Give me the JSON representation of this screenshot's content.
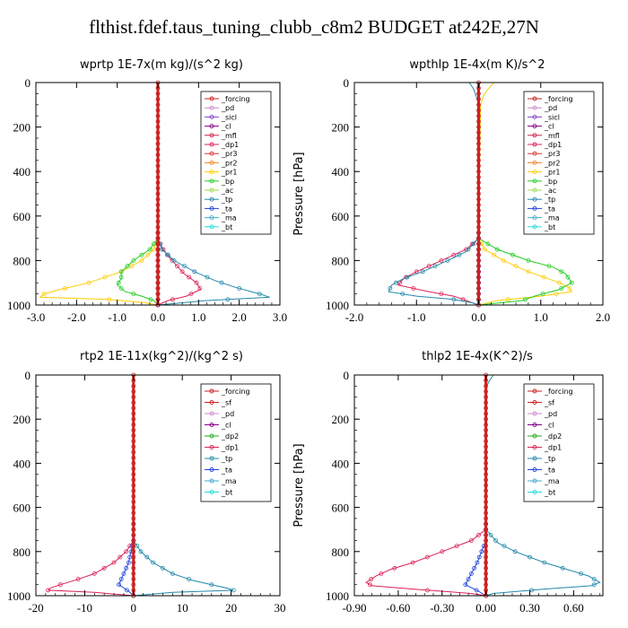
{
  "title": "flthist.fdef.taus_tuning_clubb_c8m2  BUDGET at242E,27N",
  "colors": {
    "forcing": "#cc2222",
    "sf": "#cc2222",
    "pd": "#cc88cc",
    "sicl": "#8844cc",
    "cl": "#880088",
    "mfl": "#cc2244",
    "dp1": "#dd2255",
    "dp2": "#22aa22",
    "pr3": "#dd3333",
    "pr2": "#ee8822",
    "pr1": "#ffcc00",
    "bp": "#22cc22",
    "ac": "#99dd55",
    "tp": "#2288aa",
    "ta": "#2244dd",
    "ma": "#44aacc",
    "bt": "#22dddd"
  },
  "chart_data": [
    {
      "type": "line",
      "title": "wprtp  1E-7x(m kg)/(s^2 kg)",
      "ylabel": "Pressure [hPa]",
      "xlim": [
        -3.0,
        3.0
      ],
      "ylim": [
        1000,
        0
      ],
      "xticks": [
        -3.0,
        -2.0,
        -1.0,
        0.0,
        1.0,
        2.0,
        3.0
      ],
      "xticklabels": [
        "-3.0",
        "-2.0",
        "-1.0",
        "0.0",
        "1.0",
        "2.0",
        "3.0"
      ],
      "yticks": [
        0,
        200,
        400,
        600,
        800,
        1000
      ],
      "yticklabels": [
        "0",
        "200",
        "400",
        "600",
        "800",
        "1000"
      ],
      "legend": [
        "_forcing",
        "_pd",
        "_sicl",
        "_cl",
        "_mfl",
        "_dp1",
        "_pr3",
        "_pr2",
        "_pr1",
        "_bp",
        "_ac",
        "_tp",
        "_ta",
        "_ma",
        "_bt"
      ],
      "legend_keys": [
        "forcing",
        "pd",
        "sicl",
        "cl",
        "mfl",
        "dp1",
        "pr3",
        "pr2",
        "pr1",
        "bp",
        "ac",
        "tp",
        "ta",
        "ma",
        "bt"
      ],
      "series": [
        {
          "key": "pr1",
          "p": [
            0,
            700,
            750,
            800,
            850,
            900,
            930,
            950,
            965,
            975,
            990,
            1000
          ],
          "v": [
            0,
            0,
            -0.1,
            -0.4,
            -0.9,
            -1.7,
            -2.4,
            -2.8,
            -2.9,
            -1.2,
            -0.3,
            0
          ]
        },
        {
          "key": "bp",
          "p": [
            0,
            700,
            750,
            800,
            850,
            880,
            910,
            940,
            960,
            980,
            1000
          ],
          "v": [
            0,
            0,
            -0.2,
            -0.6,
            -0.9,
            -0.9,
            -1.0,
            -0.8,
            -0.4,
            -0.1,
            0
          ]
        },
        {
          "key": "dp1",
          "p": [
            0,
            700,
            740,
            780,
            820,
            860,
            900,
            930,
            960,
            980,
            1000
          ],
          "v": [
            0,
            0,
            0.1,
            0.25,
            0.45,
            0.65,
            0.95,
            1.05,
            0.7,
            0.25,
            0
          ]
        },
        {
          "key": "tp",
          "p": [
            0,
            700,
            750,
            800,
            850,
            890,
            920,
            950,
            965,
            980,
            1000
          ],
          "v": [
            0,
            0,
            0.1,
            0.4,
            0.9,
            1.4,
            1.9,
            2.5,
            2.75,
            1.2,
            0
          ]
        },
        {
          "key": "ta",
          "p": [
            0,
            1000
          ],
          "v": [
            0,
            0
          ]
        },
        {
          "key": "ma",
          "p": [
            0,
            1000
          ],
          "v": [
            0,
            0
          ]
        },
        {
          "key": "cl",
          "p": [
            0,
            1000
          ],
          "v": [
            0,
            0
          ]
        },
        {
          "key": "forcing",
          "p": [
            0,
            1000
          ],
          "v": [
            0,
            0
          ]
        }
      ]
    },
    {
      "type": "line",
      "title": "wpthlp  1E-4x(m K)/s^2",
      "ylabel": "Pressure [hPa]",
      "xlim": [
        -2.0,
        2.0
      ],
      "ylim": [
        1000,
        0
      ],
      "xticks": [
        -2.0,
        -1.0,
        0.0,
        1.0,
        2.0
      ],
      "xticklabels": [
        "-2.0",
        "-1.0",
        "0.0",
        "1.0",
        "2.0"
      ],
      "yticks": [
        0,
        200,
        400,
        600,
        800,
        1000
      ],
      "yticklabels": [
        "0",
        "200",
        "400",
        "600",
        "800",
        "1000"
      ],
      "legend": [
        "_forcing",
        "_pd",
        "_sicl",
        "_cl",
        "_mfl",
        "_dp1",
        "_pr3",
        "_pr2",
        "_pr1",
        "_bp",
        "_ac",
        "_tp",
        "_ta",
        "_ma",
        "_bt"
      ],
      "legend_keys": [
        "forcing",
        "pd",
        "sicl",
        "cl",
        "mfl",
        "dp1",
        "pr3",
        "pr2",
        "pr1",
        "bp",
        "ac",
        "tp",
        "ta",
        "ma",
        "bt"
      ],
      "series": [
        {
          "key": "pr1",
          "p": [
            0,
            30,
            60,
            100,
            700,
            750,
            800,
            850,
            880,
            900,
            920,
            940,
            960,
            980,
            1000
          ],
          "v": [
            0.25,
            0.15,
            0.08,
            0.03,
            0,
            0.1,
            0.4,
            0.8,
            1.1,
            1.3,
            1.45,
            1.5,
            1.0,
            0.3,
            0
          ]
        },
        {
          "key": "bp",
          "p": [
            0,
            700,
            750,
            800,
            830,
            860,
            900,
            930,
            960,
            980,
            1000
          ],
          "v": [
            0,
            0,
            0.3,
            0.8,
            1.2,
            1.4,
            1.5,
            1.3,
            0.9,
            0.7,
            0
          ]
        },
        {
          "key": "dp1",
          "p": [
            0,
            700,
            750,
            800,
            850,
            880,
            910,
            940,
            960,
            980,
            1000
          ],
          "v": [
            0,
            0,
            -0.2,
            -0.6,
            -1.0,
            -1.2,
            -1.3,
            -0.8,
            -0.4,
            -0.2,
            0
          ]
        },
        {
          "key": "tp",
          "p": [
            0,
            30,
            60,
            100,
            700,
            760,
            800,
            850,
            880,
            910,
            940,
            960,
            975,
            990,
            1000
          ],
          "v": [
            -0.15,
            -0.08,
            -0.04,
            0,
            0,
            -0.2,
            -0.5,
            -0.9,
            -1.2,
            -1.4,
            -1.45,
            -1.0,
            -0.4,
            -0.1,
            0
          ]
        },
        {
          "key": "ta",
          "p": [
            0,
            1000
          ],
          "v": [
            0,
            0
          ]
        },
        {
          "key": "ma",
          "p": [
            0,
            1000
          ],
          "v": [
            0,
            0
          ]
        },
        {
          "key": "cl",
          "p": [
            0,
            1000
          ],
          "v": [
            0,
            0
          ]
        },
        {
          "key": "forcing",
          "p": [
            0,
            1000
          ],
          "v": [
            0,
            0
          ]
        }
      ]
    },
    {
      "type": "line",
      "title": "rtp2  1E-11x(kg^2)/(kg^2 s)",
      "ylabel": "Pressure [hPa]",
      "xlim": [
        -20,
        30
      ],
      "ylim": [
        1000,
        0
      ],
      "xticks": [
        -20,
        -10,
        0,
        10,
        20,
        30
      ],
      "xticklabels": [
        "-20",
        "-10",
        "0",
        "10",
        "20",
        "30"
      ],
      "yticks": [
        0,
        200,
        400,
        600,
        800,
        1000
      ],
      "yticklabels": [
        "0",
        "200",
        "400",
        "600",
        "800",
        "1000"
      ],
      "legend": [
        "_forcing",
        "_sf",
        "_pd",
        "_cl",
        "_dp2",
        "_dp1",
        "_tp",
        "_ta",
        "_ma",
        "_bt"
      ],
      "legend_keys": [
        "forcing",
        "sf",
        "pd",
        "cl",
        "dp2",
        "dp1",
        "tp",
        "ta",
        "ma",
        "bt"
      ],
      "series": [
        {
          "key": "dp1",
          "p": [
            0,
            750,
            800,
            850,
            900,
            930,
            950,
            965,
            975,
            985,
            1000
          ],
          "v": [
            0,
            0,
            -1.5,
            -4,
            -8,
            -12,
            -15,
            -17,
            -17.5,
            -8,
            0
          ]
        },
        {
          "key": "tp",
          "p": [
            0,
            750,
            800,
            850,
            900,
            930,
            950,
            965,
            975,
            985,
            1000
          ],
          "v": [
            0,
            0,
            1.5,
            4,
            8,
            12,
            16,
            19,
            20.5,
            8,
            0
          ]
        },
        {
          "key": "ta",
          "p": [
            0,
            750,
            800,
            850,
            900,
            950,
            980,
            1000
          ],
          "v": [
            0,
            0,
            -0.5,
            -1,
            -2,
            -3,
            -1,
            0
          ]
        },
        {
          "key": "forcing",
          "p": [
            0,
            1000
          ],
          "v": [
            0,
            0
          ]
        }
      ]
    },
    {
      "type": "line",
      "title": "thlp2  1E-4x(K^2)/s",
      "ylabel": "Pressure [hPa]",
      "xlim": [
        -0.9,
        0.8
      ],
      "ylim": [
        1000,
        0
      ],
      "xticks": [
        -0.9,
        -0.6,
        -0.3,
        0.0,
        0.3,
        0.6
      ],
      "xticklabels": [
        "-0.90",
        "-0.60",
        "-0.30",
        "0.00",
        "0.30",
        "0.60"
      ],
      "yticks": [
        0,
        200,
        400,
        600,
        800,
        1000
      ],
      "yticklabels": [
        "0",
        "200",
        "400",
        "600",
        "800",
        "1000"
      ],
      "legend": [
        "_forcing",
        "_sf",
        "_pd",
        "_cl",
        "_dp2",
        "_dp1",
        "_tp",
        "_ta",
        "_ma",
        "_bt"
      ],
      "legend_keys": [
        "forcing",
        "sf",
        "pd",
        "cl",
        "dp2",
        "dp1",
        "tp",
        "ta",
        "ma",
        "bt"
      ],
      "series": [
        {
          "key": "dp1",
          "p": [
            0,
            700,
            750,
            800,
            850,
            880,
            910,
            940,
            955,
            970,
            990,
            1000
          ],
          "v": [
            0,
            0,
            -0.1,
            -0.3,
            -0.5,
            -0.65,
            -0.75,
            -0.82,
            -0.78,
            -0.5,
            -0.1,
            0
          ]
        },
        {
          "key": "tp",
          "p": [
            0,
            30,
            60,
            700,
            760,
            800,
            850,
            880,
            910,
            940,
            955,
            970,
            990,
            1000
          ],
          "v": [
            0.05,
            0.02,
            0,
            0,
            0.08,
            0.2,
            0.4,
            0.55,
            0.7,
            0.78,
            0.72,
            0.4,
            0.05,
            0
          ]
        },
        {
          "key": "ta",
          "p": [
            0,
            750,
            800,
            850,
            900,
            950,
            980,
            1000
          ],
          "v": [
            0,
            0,
            -0.03,
            -0.06,
            -0.1,
            -0.14,
            -0.05,
            0
          ]
        },
        {
          "key": "forcing",
          "p": [
            0,
            1000
          ],
          "v": [
            0,
            0
          ]
        }
      ]
    }
  ]
}
